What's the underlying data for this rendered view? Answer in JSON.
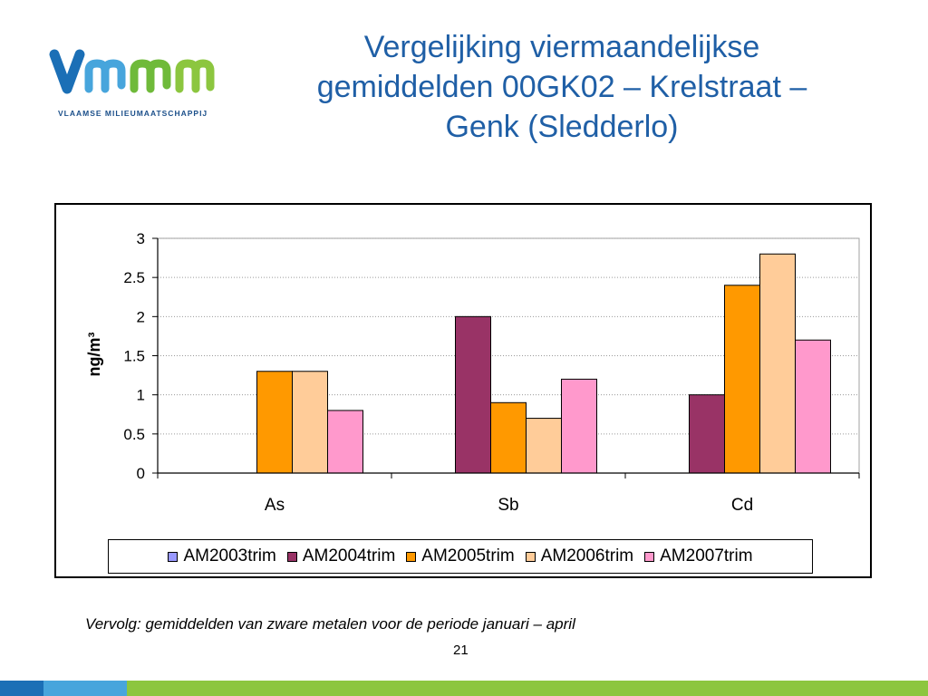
{
  "logo": {
    "name": "Vmm",
    "subtitle": "VLAAMSE MILIEUMAATSCHAPPIJ",
    "colors": {
      "v": "#1b6fb6",
      "m": "#6fba3a"
    }
  },
  "title": {
    "lines": [
      "Vergelijking viermaandelijkse",
      "gemiddelden 00GK02 – Krelstraat –",
      "Genk (Sledderlo)"
    ]
  },
  "chart_data": {
    "type": "bar",
    "categories": [
      "As",
      "Sb",
      "Cd"
    ],
    "ylabel": "ng/m³",
    "ylim": [
      0,
      3
    ],
    "yticks": [
      0,
      0.5,
      1,
      1.5,
      2,
      2.5,
      3
    ],
    "ytick_labels": [
      "0",
      "0.5",
      "1",
      "1.5",
      "2",
      "2.5",
      "3"
    ],
    "grid": true,
    "legend_position": "bottom",
    "series": [
      {
        "name": "AM2003trim",
        "color": "#9999ff",
        "values": [
          0,
          0,
          0
        ]
      },
      {
        "name": "AM2004trim",
        "color": "#993366",
        "values": [
          0,
          2.0,
          1.0
        ]
      },
      {
        "name": "AM2005trim",
        "color": "#ff9900",
        "values": [
          1.3,
          0.9,
          2.4
        ]
      },
      {
        "name": "AM2006trim",
        "color": "#ffcc99",
        "values": [
          1.3,
          0.7,
          2.8
        ]
      },
      {
        "name": "AM2007trim",
        "color": "#ff99cc",
        "values": [
          0.8,
          1.2,
          1.7
        ]
      }
    ]
  },
  "caption": "Vervolg: gemiddelden van zware metalen voor de periode januari – april",
  "page_number": "21",
  "footer_colors": [
    "#1b6fb6",
    "#47a5dc",
    "#8cc63f"
  ]
}
